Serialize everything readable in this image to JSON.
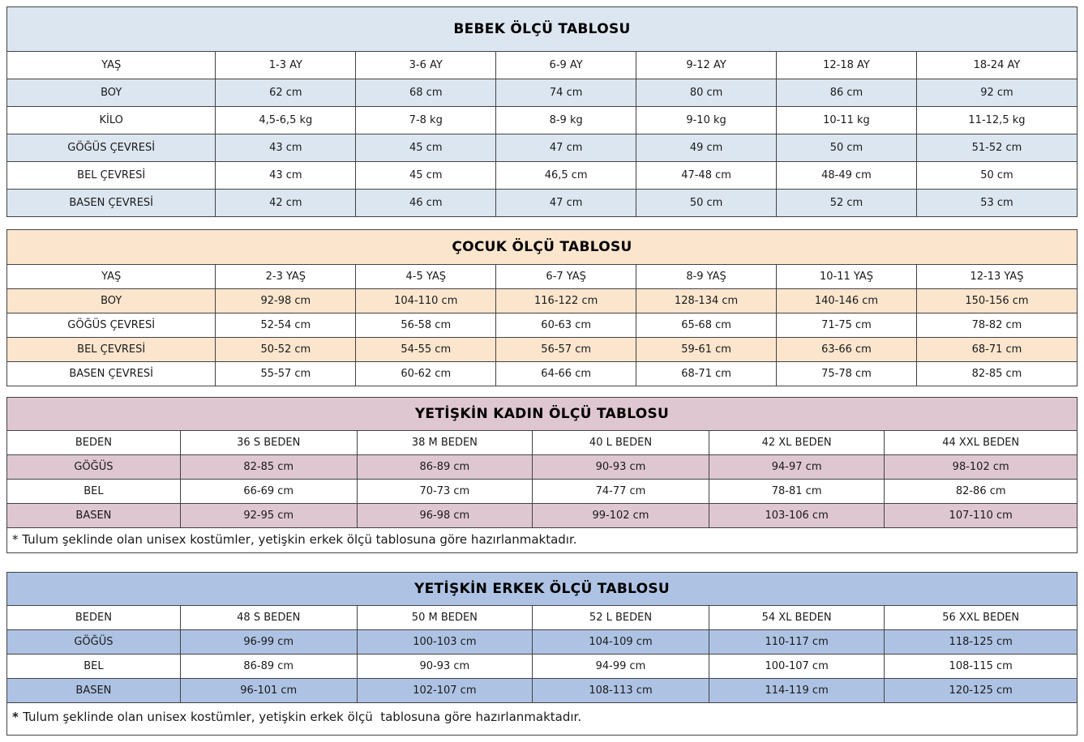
{
  "page": {
    "background": "#ffffff",
    "border_color": "#424242",
    "text_color": "#1a1a1a"
  },
  "tables": [
    {
      "title": "BEBEK ÖLÇÜ TABLOSU",
      "accent_color": "#dce6f0",
      "rows": [
        {
          "label": "YAŞ",
          "values": [
            "1-3 AY",
            "3-6 AY",
            "6-9 AY",
            "9-12 AY",
            "12-18 AY",
            "18-24 AY"
          ]
        },
        {
          "label": "BOY",
          "values": [
            "62 cm",
            "68 cm",
            "74 cm",
            "80 cm",
            "86 cm",
            "92 cm"
          ]
        },
        {
          "label": "KİLO",
          "values": [
            "4,5-6,5 kg",
            "7-8 kg",
            "8-9 kg",
            "9-10 kg",
            "10-11 kg",
            "11-12,5 kg"
          ]
        },
        {
          "label": "GÖĞÜS ÇEVRESİ",
          "values": [
            "43 cm",
            "45 cm",
            "47 cm",
            "49 cm",
            "50 cm",
            "51-52 cm"
          ]
        },
        {
          "label": "BEL ÇEVRESİ",
          "values": [
            "43 cm",
            "45 cm",
            "46,5 cm",
            "47-48 cm",
            "48-49 cm",
            "50 cm"
          ]
        },
        {
          "label": "BASEN ÇEVRESİ",
          "values": [
            "42 cm",
            "46 cm",
            "47 cm",
            "50 cm",
            "52 cm",
            "53 cm"
          ]
        }
      ]
    },
    {
      "title": "ÇOCUK ÖLÇÜ TABLOSU",
      "accent_color": "#fbe5cd",
      "rows": [
        {
          "label": "YAŞ",
          "values": [
            "2-3 YAŞ",
            "4-5 YAŞ",
            "6-7 YAŞ",
            "8-9 YAŞ",
            "10-11 YAŞ",
            "12-13 YAŞ"
          ]
        },
        {
          "label": "BOY",
          "values": [
            "92-98 cm",
            "104-110 cm",
            "116-122 cm",
            "128-134 cm",
            "140-146 cm",
            "150-156 cm"
          ]
        },
        {
          "label": "GÖĞÜS ÇEVRESİ",
          "values": [
            "52-54 cm",
            "56-58 cm",
            "60-63 cm",
            "65-68 cm",
            "71-75 cm",
            "78-82 cm"
          ]
        },
        {
          "label": "BEL ÇEVRESİ",
          "values": [
            "50-52 cm",
            "54-55 cm",
            "56-57 cm",
            "59-61 cm",
            "63-66 cm",
            "68-71 cm"
          ]
        },
        {
          "label": "BASEN ÇEVRESİ",
          "values": [
            "55-57 cm",
            "60-62 cm",
            "64-66 cm",
            "68-71 cm",
            "75-78 cm",
            "82-85 cm"
          ]
        }
      ]
    },
    {
      "title": "YETİŞKİN KADIN ÖLÇÜ TABLOSU",
      "accent_color": "#dfc7d1",
      "rows": [
        {
          "label": "BEDEN",
          "values": [
            "36 S BEDEN",
            "38 M BEDEN",
            "40 L BEDEN",
            "42 XL BEDEN",
            "44 XXL BEDEN"
          ]
        },
        {
          "label": "GÖĞÜS",
          "values": [
            "82-85 cm",
            "86-89 cm",
            "90-93 cm",
            "94-97 cm",
            "98-102 cm"
          ]
        },
        {
          "label": "BEL",
          "values": [
            "66-69 cm",
            "70-73 cm",
            "74-77 cm",
            "78-81 cm",
            "82-86 cm"
          ]
        },
        {
          "label": "BASEN",
          "values": [
            "92-95 cm",
            "96-98 cm",
            "99-102 cm",
            "103-106 cm",
            "107-110 cm"
          ]
        }
      ],
      "footnote": {
        "marker": "* ",
        "text": "Tulum şeklinde olan unisex kostümler, yetişkin erkek ölçü tablosuna göre hazırlanmaktadır."
      }
    },
    {
      "title": "YETİŞKİN ERKEK ÖLÇÜ TABLOSU",
      "accent_color": "#aec3e4",
      "rows": [
        {
          "label": "BEDEN",
          "values": [
            "48 S BEDEN",
            "50 M BEDEN",
            "52 L BEDEN",
            "54 XL BEDEN",
            "56 XXL BEDEN"
          ]
        },
        {
          "label": "GÖĞÜS",
          "values": [
            "96-99 cm",
            "100-103 cm",
            "104-109 cm",
            "110-117 cm",
            "118-125 cm"
          ]
        },
        {
          "label": "BEL",
          "values": [
            "86-89 cm",
            "90-93 cm",
            "94-99 cm",
            "100-107 cm",
            "108-115 cm"
          ]
        },
        {
          "label": "BASEN",
          "values": [
            "96-101 cm",
            "102-107 cm",
            "108-113 cm",
            "114-119 cm",
            "120-125 cm"
          ]
        }
      ],
      "footnote": {
        "marker": "* ",
        "text": "Tulum şeklinde olan unisex kostümler, yetişkin erkek ölçü  tablosuna göre hazırlanmaktadır."
      }
    }
  ]
}
